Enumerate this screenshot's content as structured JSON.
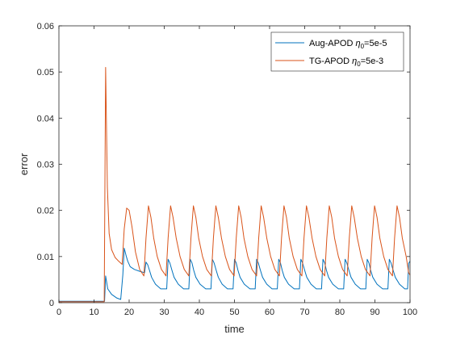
{
  "chart_data": {
    "type": "line",
    "xlabel": "time",
    "ylabel": "error",
    "xlim": [
      0,
      100
    ],
    "ylim": [
      0,
      0.06
    ],
    "xticks": [
      0,
      10,
      20,
      30,
      40,
      50,
      60,
      70,
      80,
      90,
      100
    ],
    "yticks": [
      0,
      0.01,
      0.02,
      0.03,
      0.04,
      0.05,
      0.06
    ],
    "xtick_labels": [
      "0",
      "10",
      "20",
      "30",
      "40",
      "50",
      "60",
      "70",
      "80",
      "90",
      "100"
    ],
    "ytick_labels": [
      "0",
      "0.01",
      "0.02",
      "0.03",
      "0.04",
      "0.05",
      "0.06"
    ],
    "grid": false,
    "legend_position": "top-right",
    "series": [
      {
        "name": "Aug-APOD η0=5e-5",
        "name_main": "Aug-APOD ",
        "name_eta": "η",
        "name_sub": "0",
        "name_tail": "=5e-5",
        "color": "#0072BD",
        "x": [
          0,
          13.0,
          13.3,
          13.9,
          15.0,
          16.5,
          17.6,
          18.2,
          18.6,
          19.2,
          19.6,
          20.3,
          21.5,
          23.0,
          24.4,
          24.8,
          25.3,
          25.8,
          26.4,
          27.5,
          29.0,
          30.7,
          31.1,
          31.6,
          32.2,
          32.8,
          34.0,
          35.5,
          37.0,
          37.4,
          37.9,
          38.4,
          39.0,
          40.2,
          41.8,
          43.3,
          43.7,
          44.2,
          44.8,
          45.4,
          46.5,
          48.0,
          49.6,
          50.0,
          50.5,
          51.0,
          51.6,
          52.8,
          54.4,
          55.9,
          56.3,
          56.8,
          57.4,
          58.0,
          59.2,
          60.7,
          62.2,
          62.6,
          63.1,
          63.6,
          64.2,
          65.4,
          67.0,
          68.5,
          68.9,
          69.4,
          70.0,
          70.6,
          71.8,
          73.3,
          74.8,
          75.2,
          75.7,
          76.2,
          76.8,
          78.0,
          79.6,
          81.1,
          81.5,
          82.0,
          82.6,
          83.2,
          84.4,
          85.9,
          87.4,
          87.8,
          88.3,
          88.8,
          89.4,
          90.6,
          92.2,
          93.7,
          94.1,
          94.6,
          95.2,
          95.8,
          97.0,
          98.5,
          99.3,
          99.6,
          100
        ],
        "y": [
          0.0003,
          0.0003,
          0.0058,
          0.003,
          0.0018,
          0.001,
          0.0007,
          0.006,
          0.0118,
          0.01,
          0.009,
          0.0078,
          0.0072,
          0.0068,
          0.0065,
          0.0088,
          0.0082,
          0.007,
          0.0055,
          0.004,
          0.003,
          0.003,
          0.0094,
          0.0086,
          0.007,
          0.0055,
          0.004,
          0.003,
          0.003,
          0.0094,
          0.0086,
          0.007,
          0.0055,
          0.004,
          0.003,
          0.003,
          0.0094,
          0.0086,
          0.007,
          0.0055,
          0.004,
          0.003,
          0.003,
          0.0094,
          0.0086,
          0.007,
          0.0055,
          0.004,
          0.003,
          0.003,
          0.0094,
          0.0086,
          0.007,
          0.0055,
          0.004,
          0.003,
          0.003,
          0.0094,
          0.0086,
          0.007,
          0.0055,
          0.004,
          0.003,
          0.003,
          0.0094,
          0.0086,
          0.007,
          0.0055,
          0.004,
          0.003,
          0.003,
          0.0094,
          0.0086,
          0.007,
          0.0055,
          0.004,
          0.003,
          0.003,
          0.0094,
          0.0086,
          0.007,
          0.0055,
          0.004,
          0.003,
          0.003,
          0.0094,
          0.0086,
          0.007,
          0.0055,
          0.004,
          0.003,
          0.003,
          0.0094,
          0.0086,
          0.007,
          0.0055,
          0.004,
          0.003,
          0.003,
          0.0085,
          0.009
        ]
      },
      {
        "name": "TG-APOD η0=5e-3",
        "name_main": "TG-APOD ",
        "name_eta": "η",
        "name_sub": "0",
        "name_tail": "=5e-3",
        "color": "#D95319",
        "x": [
          0,
          12.9,
          13.3,
          13.8,
          14.3,
          15.0,
          16.0,
          17.0,
          18.0,
          18.6,
          19.3,
          20.0,
          20.8,
          21.8,
          23.0,
          24.2,
          24.8,
          25.5,
          26.2,
          27.0,
          28.0,
          29.2,
          30.5,
          31.1,
          31.8,
          32.5,
          33.4,
          34.5,
          35.7,
          37.0,
          37.6,
          38.3,
          39.0,
          39.8,
          40.9,
          42.1,
          43.4,
          44.0,
          44.7,
          45.4,
          46.3,
          47.4,
          48.6,
          49.9,
          50.5,
          51.2,
          51.9,
          52.7,
          53.8,
          55.0,
          56.3,
          56.9,
          57.6,
          58.3,
          59.2,
          60.3,
          61.5,
          62.8,
          63.4,
          64.1,
          64.8,
          65.6,
          66.7,
          67.9,
          69.2,
          69.8,
          70.5,
          71.2,
          72.1,
          73.2,
          74.4,
          75.7,
          76.3,
          77.0,
          77.7,
          78.5,
          79.6,
          80.8,
          82.1,
          82.7,
          83.4,
          84.1,
          85.0,
          86.1,
          87.3,
          88.6,
          89.2,
          89.9,
          90.6,
          91.4,
          92.5,
          93.7,
          95.0,
          95.6,
          96.3,
          97.0,
          97.8,
          98.9,
          99.6,
          100
        ],
        "y": [
          0.0002,
          0.0002,
          0.051,
          0.025,
          0.015,
          0.0115,
          0.0098,
          0.009,
          0.0083,
          0.016,
          0.0205,
          0.02,
          0.0165,
          0.011,
          0.0072,
          0.0058,
          0.014,
          0.021,
          0.0185,
          0.014,
          0.01,
          0.0072,
          0.0058,
          0.014,
          0.021,
          0.0185,
          0.014,
          0.01,
          0.0072,
          0.0058,
          0.014,
          0.021,
          0.0185,
          0.014,
          0.01,
          0.0072,
          0.0058,
          0.014,
          0.021,
          0.0185,
          0.014,
          0.01,
          0.0072,
          0.0058,
          0.014,
          0.021,
          0.0185,
          0.014,
          0.01,
          0.0072,
          0.0058,
          0.014,
          0.021,
          0.0185,
          0.014,
          0.01,
          0.0072,
          0.0058,
          0.014,
          0.021,
          0.0185,
          0.014,
          0.01,
          0.0072,
          0.0058,
          0.014,
          0.021,
          0.0185,
          0.014,
          0.01,
          0.0072,
          0.0058,
          0.014,
          0.021,
          0.0185,
          0.014,
          0.01,
          0.0072,
          0.0058,
          0.014,
          0.021,
          0.0185,
          0.014,
          0.01,
          0.0072,
          0.0058,
          0.014,
          0.021,
          0.0185,
          0.014,
          0.01,
          0.0072,
          0.0058,
          0.014,
          0.021,
          0.0185,
          0.014,
          0.01,
          0.0065,
          0.006
        ]
      }
    ]
  }
}
